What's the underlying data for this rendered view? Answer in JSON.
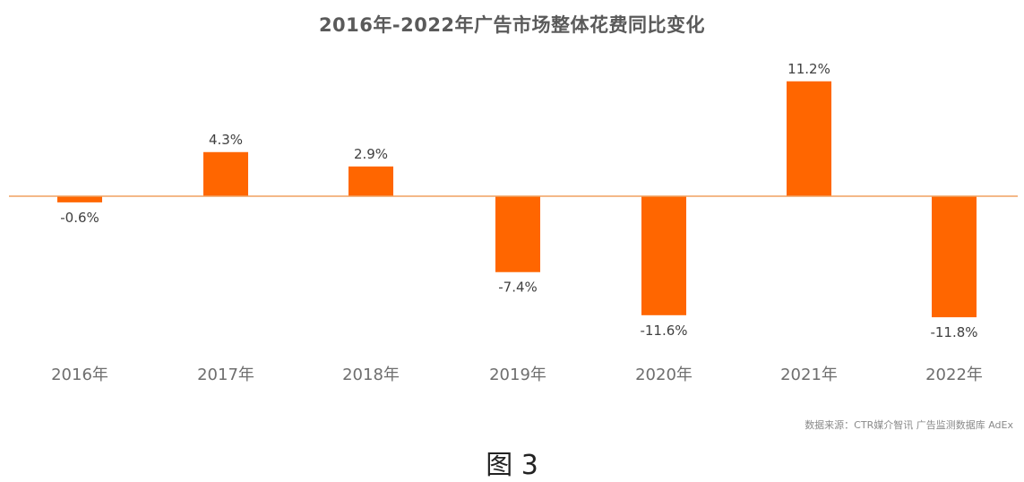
{
  "colors": {
    "bar": "#ff6600",
    "baseline": "#f0a060",
    "label": "#404040",
    "tick": "#6e6e6e"
  },
  "source": "数据来源：CTR媒介智讯 广告监测数据库 AdEx",
  "caption": "图 3",
  "chart_data": {
    "type": "bar",
    "title": "2016年-2022年广告市场整体花费同比变化",
    "xlabel": "",
    "ylabel": "",
    "categories": [
      "2016年",
      "2017年",
      "2018年",
      "2019年",
      "2020年",
      "2021年",
      "2022年"
    ],
    "values": [
      -0.6,
      4.3,
      2.9,
      -7.4,
      -11.6,
      11.2,
      -11.8
    ],
    "data_labels": [
      "-0.6%",
      "4.3%",
      "2.9%",
      "-7.4%",
      "-11.6%",
      "11.2%",
      "-11.8%"
    ],
    "unit": "%",
    "grid": false,
    "legend": "none"
  }
}
